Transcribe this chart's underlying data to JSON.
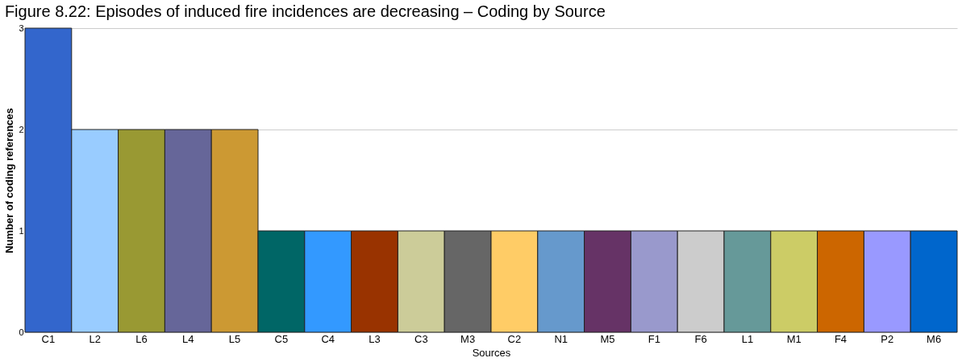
{
  "chart_data": {
    "type": "bar",
    "title": "Figure 8.22: Episodes of induced fire incidences are decreasing – Coding by Source",
    "xlabel": "Sources",
    "ylabel": "Number of coding references",
    "categories": [
      "C1",
      "L2",
      "L6",
      "L4",
      "L5",
      "C5",
      "C4",
      "L3",
      "C3",
      "M3",
      "C2",
      "N1",
      "M5",
      "F1",
      "F6",
      "L1",
      "M1",
      "F4",
      "P2",
      "M6"
    ],
    "values": [
      3,
      2,
      2,
      2,
      2,
      1,
      1,
      1,
      1,
      1,
      1,
      1,
      1,
      1,
      1,
      1,
      1,
      1,
      1,
      1
    ],
    "colors": [
      "#3366cc",
      "#99ccff",
      "#999933",
      "#666699",
      "#cc9933",
      "#006666",
      "#3399ff",
      "#993300",
      "#cccc99",
      "#666666",
      "#ffcc66",
      "#6699cc",
      "#663366",
      "#9999cc",
      "#cccccc",
      "#669999",
      "#cccc66",
      "#cc6600",
      "#9999ff",
      "#0066cc"
    ],
    "ylim": [
      0,
      3
    ],
    "yticks": [
      0,
      1,
      2,
      3
    ],
    "grid": "y",
    "legend": false
  }
}
